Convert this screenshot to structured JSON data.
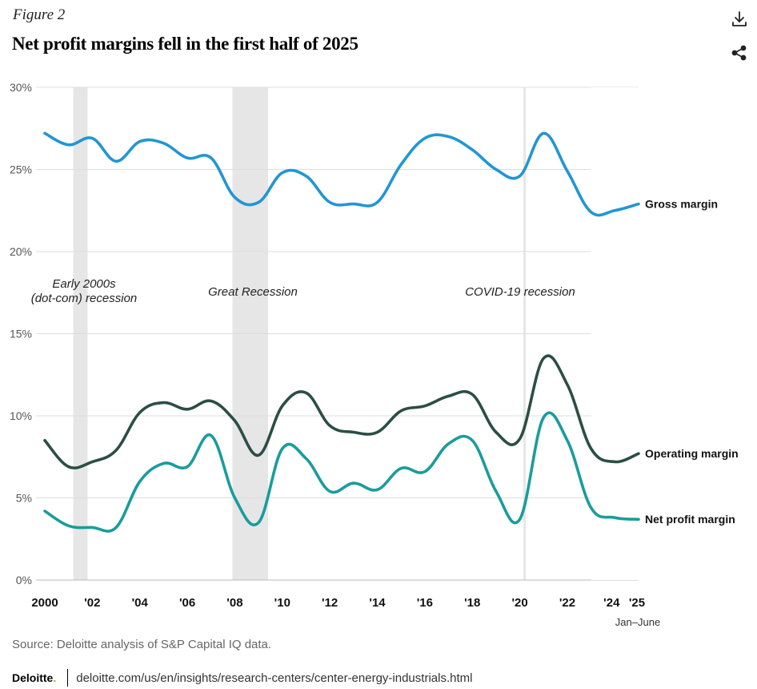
{
  "figure_label": "Figure 2",
  "title": "Net profit margins fell in the first half of 2025",
  "icons": {
    "download": "download-icon",
    "share": "share-icon"
  },
  "source": "Source: Deloitte analysis of S&P Capital IQ data.",
  "footer": {
    "brand": "Deloitte",
    "brand_dot": ".",
    "url": "deloitte.com/us/en/insights/research-centers/center-energy-industrials.html"
  },
  "colors": {
    "gross": "#2196d3",
    "operating": "#2b4e45",
    "net": "#1a9c9c",
    "recession_band": "#e6e6e6",
    "highlight": "#ffffff",
    "grid": "#dddddd"
  },
  "chart_data": {
    "type": "line",
    "title": "Net profit margins fell in the first half of 2025",
    "xlabel": "",
    "ylabel": "",
    "ylim": [
      0,
      30
    ],
    "y_ticks": [
      "0%",
      "5%",
      "10%",
      "15%",
      "20%",
      "25%",
      "30%"
    ],
    "y_tick_values": [
      0,
      5,
      10,
      15,
      20,
      25,
      30
    ],
    "x_range": [
      2000,
      2025
    ],
    "x_ticks": [
      {
        "x": 2000,
        "label": "2000"
      },
      {
        "x": 2002,
        "label": "'02"
      },
      {
        "x": 2004,
        "label": "'04"
      },
      {
        "x": 2006,
        "label": "'06"
      },
      {
        "x": 2008,
        "label": "'08"
      },
      {
        "x": 2010,
        "label": "'10"
      },
      {
        "x": 2012,
        "label": "'12"
      },
      {
        "x": 2014,
        "label": "'14"
      },
      {
        "x": 2016,
        "label": "'16"
      },
      {
        "x": 2018,
        "label": "'18"
      },
      {
        "x": 2020,
        "label": "'20"
      },
      {
        "x": 2022,
        "label": "'22"
      },
      {
        "x": 2024,
        "label": "'24"
      },
      {
        "x": 2025,
        "label": "'25"
      }
    ],
    "x_sublabel": "Jan–June",
    "grid": true,
    "legend": "inline labels at right end of lines",
    "shaded_periods": [
      {
        "label": "Early 2000s (dot-com) recession",
        "label_lines": [
          "Early 2000s",
          "(dot-com) recession"
        ],
        "start": 2001.2,
        "end": 2001.8
      },
      {
        "label": "Great Recession",
        "label_lines": [
          "Great Recession"
        ],
        "start": 2007.9,
        "end": 2009.4
      },
      {
        "label": "COVID-19 recession",
        "label_lines": [
          "COVID-19 recession"
        ],
        "start": 2020.15,
        "end": 2020.2
      }
    ],
    "highlight_period": {
      "start": 2023,
      "end": 2025
    },
    "series": [
      {
        "name": "Gross margin",
        "key": "gross",
        "x": [
          2000,
          2001,
          2002,
          2003,
          2004,
          2005,
          2006,
          2007,
          2008,
          2009,
          2010,
          2011,
          2012,
          2013,
          2014,
          2015,
          2016,
          2017,
          2018,
          2019,
          2020,
          2021,
          2022,
          2023,
          2024,
          2025
        ],
        "values": [
          27.2,
          26.5,
          26.9,
          25.5,
          26.7,
          26.6,
          25.7,
          25.7,
          23.3,
          23.0,
          24.8,
          24.6,
          23.0,
          22.9,
          23.0,
          25.3,
          26.9,
          27.0,
          26.2,
          25.0,
          24.6,
          27.2,
          24.9,
          22.4,
          22.5,
          22.9
        ]
      },
      {
        "name": "Operating margin",
        "key": "operating",
        "x": [
          2000,
          2001,
          2002,
          2003,
          2004,
          2005,
          2006,
          2007,
          2008,
          2009,
          2010,
          2011,
          2012,
          2013,
          2014,
          2015,
          2016,
          2017,
          2018,
          2019,
          2020,
          2021,
          2022,
          2023,
          2024,
          2025
        ],
        "values": [
          8.5,
          6.9,
          7.2,
          7.9,
          10.2,
          10.8,
          10.4,
          10.9,
          9.7,
          7.6,
          10.6,
          11.4,
          9.4,
          9.0,
          9.0,
          10.3,
          10.6,
          11.2,
          11.3,
          9.0,
          8.6,
          13.5,
          11.9,
          8.0,
          7.2,
          7.7
        ]
      },
      {
        "name": "Net profit margin",
        "key": "net",
        "x": [
          2000,
          2001,
          2002,
          2003,
          2004,
          2005,
          2006,
          2007,
          2008,
          2009,
          2010,
          2011,
          2012,
          2013,
          2014,
          2015,
          2016,
          2017,
          2018,
          2019,
          2020,
          2021,
          2022,
          2023,
          2024,
          2025
        ],
        "values": [
          4.2,
          3.3,
          3.2,
          3.2,
          6.0,
          7.1,
          6.9,
          8.8,
          5.0,
          3.5,
          8.0,
          7.4,
          5.4,
          5.9,
          5.5,
          6.8,
          6.6,
          8.3,
          8.5,
          5.4,
          3.7,
          9.9,
          8.5,
          4.4,
          3.8,
          3.7
        ]
      }
    ]
  }
}
